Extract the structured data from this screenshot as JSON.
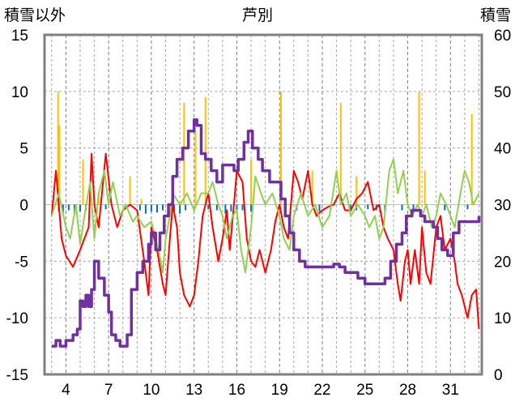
{
  "chart_data": {
    "type": "line",
    "title": "芦別",
    "left_axis_label": "積雪以外",
    "right_axis_label": "積雪",
    "left_ylim": [
      -15,
      15
    ],
    "right_ylim": [
      0,
      60
    ],
    "left_ticks": [
      "15",
      "10",
      "5",
      "0",
      "-5",
      "-10",
      "-15"
    ],
    "right_ticks": [
      "60",
      "50",
      "40",
      "30",
      "20",
      "10",
      "0"
    ],
    "x_tick_labels": [
      "4",
      "7",
      "10",
      "13",
      "16",
      "19",
      "22",
      "25",
      "28",
      "31"
    ],
    "x_tick_days": [
      4,
      7,
      10,
      13,
      16,
      19,
      22,
      25,
      28,
      31
    ],
    "xlim": [
      2.5,
      33.2
    ],
    "series": [
      {
        "axis": "left",
        "color": "#ff0000",
        "style": "line",
        "points": [
          [
            3,
            -1
          ],
          [
            3.3,
            3
          ],
          [
            3.7,
            -3
          ],
          [
            4,
            -4.5
          ],
          [
            4.5,
            -5.5
          ],
          [
            5,
            -4
          ],
          [
            5.6,
            -2
          ],
          [
            5.8,
            4.5
          ],
          [
            6,
            0
          ],
          [
            6.3,
            -2
          ],
          [
            6.8,
            4.5
          ],
          [
            7.2,
            0
          ],
          [
            7.6,
            -2
          ],
          [
            8,
            -0.5
          ],
          [
            8.5,
            0
          ],
          [
            9,
            -0.5
          ],
          [
            9.5,
            -5
          ],
          [
            9.8,
            -8
          ],
          [
            10,
            -2
          ],
          [
            10.4,
            -4
          ],
          [
            10.8,
            -7
          ],
          [
            11,
            -8
          ],
          [
            11.3,
            -3
          ],
          [
            11.5,
            0
          ],
          [
            11.8,
            -2
          ],
          [
            12,
            -6
          ],
          [
            12.3,
            -8
          ],
          [
            12.7,
            -9
          ],
          [
            13,
            -8
          ],
          [
            13.3,
            -5
          ],
          [
            13.6,
            -1
          ],
          [
            14,
            1
          ],
          [
            14.3,
            -2
          ],
          [
            14.7,
            -5
          ],
          [
            15,
            -3
          ],
          [
            15.3,
            -0.5
          ],
          [
            15.5,
            -4
          ],
          [
            15.8,
            0
          ],
          [
            16,
            3
          ],
          [
            16.4,
            2
          ],
          [
            16.7,
            -3
          ],
          [
            17,
            -5
          ],
          [
            17.3,
            -5.5
          ],
          [
            17.6,
            -4
          ],
          [
            18,
            -6
          ],
          [
            18.4,
            -4
          ],
          [
            18.7,
            -1.5
          ],
          [
            19,
            0
          ],
          [
            19.3,
            -2
          ],
          [
            19.6,
            -3
          ],
          [
            20,
            3
          ],
          [
            20.3,
            2
          ],
          [
            20.6,
            0.5
          ],
          [
            21,
            3
          ],
          [
            21.3,
            0
          ],
          [
            21.6,
            -1
          ],
          [
            22,
            -0.5
          ],
          [
            22.4,
            -0.2
          ],
          [
            22.8,
            0
          ],
          [
            23.2,
            1
          ],
          [
            23.6,
            -0.5
          ],
          [
            24,
            -0.5
          ],
          [
            24.4,
            0.5
          ],
          [
            24.8,
            1
          ],
          [
            25.2,
            2
          ],
          [
            25.6,
            -0.5
          ],
          [
            26,
            0
          ],
          [
            26.3,
            -2
          ],
          [
            26.6,
            -3
          ],
          [
            27,
            -4
          ],
          [
            27.3,
            -7
          ],
          [
            27.5,
            -8.5
          ],
          [
            27.8,
            -5
          ],
          [
            28,
            -4
          ],
          [
            28.2,
            -7
          ],
          [
            28.5,
            -4
          ],
          [
            28.8,
            -7
          ],
          [
            29,
            -2
          ],
          [
            29.3,
            -6
          ],
          [
            29.6,
            -7
          ],
          [
            30,
            -2
          ],
          [
            30.3,
            -1
          ],
          [
            30.6,
            -4
          ],
          [
            31,
            -3
          ],
          [
            31.3,
            -5
          ],
          [
            31.5,
            -7
          ],
          [
            31.8,
            -8
          ],
          [
            32.2,
            -10
          ],
          [
            32.5,
            -8
          ],
          [
            32.8,
            -7.5
          ],
          [
            33,
            -11
          ]
        ]
      },
      {
        "axis": "left",
        "color": "#92d050",
        "style": "line",
        "points": [
          [
            3,
            -1
          ],
          [
            3.5,
            1
          ],
          [
            4,
            -2
          ],
          [
            4.3,
            -3
          ],
          [
            4.7,
            0
          ],
          [
            5,
            -3.5
          ],
          [
            5.3,
            -1
          ],
          [
            5.7,
            2
          ],
          [
            6,
            -3
          ],
          [
            6.3,
            1
          ],
          [
            6.7,
            3
          ],
          [
            7,
            0
          ],
          [
            7.3,
            2
          ],
          [
            7.8,
            -1
          ],
          [
            8.2,
            0
          ],
          [
            8.7,
            -1.5
          ],
          [
            9,
            -1
          ],
          [
            9.5,
            -2
          ],
          [
            10,
            -1.5
          ],
          [
            10.5,
            -4
          ],
          [
            10.8,
            -6
          ],
          [
            11,
            -3
          ],
          [
            11.3,
            -1
          ],
          [
            11.5,
            1
          ],
          [
            12,
            0
          ],
          [
            12.5,
            1
          ],
          [
            13,
            -0.5
          ],
          [
            13.5,
            1
          ],
          [
            14,
            1
          ],
          [
            14.3,
            2
          ],
          [
            14.7,
            0
          ],
          [
            15,
            -1
          ],
          [
            15.3,
            -3
          ],
          [
            15.7,
            -1
          ],
          [
            16,
            -0.5
          ],
          [
            16.3,
            -4
          ],
          [
            16.6,
            -6
          ],
          [
            17,
            -2
          ],
          [
            17.3,
            2.5
          ],
          [
            17.7,
            1
          ],
          [
            18,
            0
          ],
          [
            18.5,
            1
          ],
          [
            19,
            -1
          ],
          [
            19.3,
            -3
          ],
          [
            19.7,
            -4
          ],
          [
            20,
            -1
          ],
          [
            20.5,
            1
          ],
          [
            21,
            -1
          ],
          [
            21.5,
            0
          ],
          [
            22,
            -2
          ],
          [
            22.5,
            -1
          ],
          [
            23,
            3
          ],
          [
            23.3,
            0
          ],
          [
            23.7,
            1
          ],
          [
            24,
            -1
          ],
          [
            24.5,
            0
          ],
          [
            25,
            -1
          ],
          [
            25.3,
            -2
          ],
          [
            25.7,
            -1
          ],
          [
            26,
            -3
          ],
          [
            26.3,
            -2
          ],
          [
            26.7,
            3
          ],
          [
            27,
            4
          ],
          [
            27.3,
            1
          ],
          [
            27.7,
            3
          ],
          [
            28,
            0
          ],
          [
            28.3,
            -1
          ],
          [
            28.7,
            0
          ],
          [
            29,
            -1
          ],
          [
            29.3,
            0
          ],
          [
            29.7,
            -2
          ],
          [
            30,
            -1
          ],
          [
            30.3,
            1
          ],
          [
            30.7,
            0
          ],
          [
            31,
            -1
          ],
          [
            31.3,
            -2
          ],
          [
            31.7,
            1
          ],
          [
            32,
            3
          ],
          [
            32.3,
            2
          ],
          [
            32.6,
            0
          ],
          [
            33,
            1
          ]
        ]
      },
      {
        "axis": "right",
        "color": "#7030a0",
        "style": "step",
        "points": [
          [
            3,
            5
          ],
          [
            3.3,
            6
          ],
          [
            3.6,
            5
          ],
          [
            4,
            6
          ],
          [
            4.5,
            7
          ],
          [
            4.8,
            8
          ],
          [
            5,
            13
          ],
          [
            5.2,
            12
          ],
          [
            5.4,
            14
          ],
          [
            5.6,
            12
          ],
          [
            5.8,
            15
          ],
          [
            6,
            20
          ],
          [
            6.3,
            17
          ],
          [
            6.7,
            14
          ],
          [
            7,
            11
          ],
          [
            7.2,
            7
          ],
          [
            7.5,
            6
          ],
          [
            7.8,
            5
          ],
          [
            8,
            5
          ],
          [
            8.3,
            7
          ],
          [
            8.6,
            15
          ],
          [
            9,
            18
          ],
          [
            9.4,
            20
          ],
          [
            9.8,
            23
          ],
          [
            10,
            25
          ],
          [
            10.3,
            22
          ],
          [
            10.6,
            25
          ],
          [
            10.9,
            28
          ],
          [
            11.2,
            30
          ],
          [
            11.5,
            35
          ],
          [
            11.8,
            38
          ],
          [
            12.2,
            40
          ],
          [
            12.6,
            43
          ],
          [
            13,
            45
          ],
          [
            13.2,
            44
          ],
          [
            13.5,
            39
          ],
          [
            13.8,
            38
          ],
          [
            14.2,
            36
          ],
          [
            14.6,
            34
          ],
          [
            15,
            37
          ],
          [
            15.4,
            37
          ],
          [
            15.8,
            36
          ],
          [
            16.1,
            38
          ],
          [
            16.5,
            41
          ],
          [
            16.8,
            43
          ],
          [
            17.1,
            40
          ],
          [
            17.5,
            38
          ],
          [
            17.8,
            36
          ],
          [
            18.3,
            34
          ],
          [
            18.8,
            34
          ],
          [
            19.1,
            31
          ],
          [
            19.4,
            28
          ],
          [
            19.7,
            25
          ],
          [
            20,
            22
          ],
          [
            20.4,
            20
          ],
          [
            20.8,
            19
          ],
          [
            21.2,
            19
          ],
          [
            21.6,
            19
          ],
          [
            22,
            19
          ],
          [
            22.4,
            19
          ],
          [
            22.8,
            19.5
          ],
          [
            23.2,
            19
          ],
          [
            23.6,
            18
          ],
          [
            24,
            18
          ],
          [
            24.5,
            17
          ],
          [
            25,
            16
          ],
          [
            25.5,
            16
          ],
          [
            26,
            16
          ],
          [
            26.4,
            17
          ],
          [
            26.8,
            20
          ],
          [
            27.2,
            23
          ],
          [
            27.6,
            25
          ],
          [
            27.9,
            28
          ],
          [
            28.3,
            29
          ],
          [
            28.6,
            29
          ],
          [
            28.9,
            28
          ],
          [
            29.2,
            27
          ],
          [
            29.5,
            27
          ],
          [
            29.8,
            26
          ],
          [
            30.1,
            24
          ],
          [
            30.4,
            22
          ],
          [
            30.8,
            21
          ],
          [
            31.2,
            25
          ],
          [
            31.6,
            27
          ],
          [
            32,
            27
          ],
          [
            32.5,
            27
          ],
          [
            33,
            28
          ]
        ]
      },
      {
        "axis": "right",
        "color": "#ffc000",
        "style": "bar",
        "width_days": 0.08,
        "points": [
          [
            3.45,
            50
          ],
          [
            3.55,
            44
          ],
          [
            5.2,
            38
          ],
          [
            6.3,
            32
          ],
          [
            8.5,
            35
          ],
          [
            9.3,
            31
          ],
          [
            12.3,
            48
          ],
          [
            13.1,
            43
          ],
          [
            13.8,
            49
          ],
          [
            17,
            38
          ],
          [
            19.1,
            50
          ],
          [
            21.3,
            36
          ],
          [
            23.3,
            48
          ],
          [
            24.4,
            35
          ],
          [
            28.8,
            50
          ],
          [
            29.2,
            36
          ],
          [
            32.5,
            46
          ]
        ]
      },
      {
        "axis": "left",
        "color": "#0070c0",
        "style": "bar",
        "width_days": 0.05,
        "points": [
          [
            3.5,
            -0.6
          ],
          [
            3.8,
            -0.7
          ],
          [
            4.2,
            -0.5
          ],
          [
            4.6,
            -0.8
          ],
          [
            5.0,
            -0.6
          ],
          [
            5.4,
            -0.5
          ],
          [
            6.8,
            -0.4
          ],
          [
            9.2,
            -0.5
          ],
          [
            9.6,
            -0.8
          ],
          [
            10.0,
            -0.6
          ],
          [
            10.4,
            -0.7
          ],
          [
            10.8,
            -0.5
          ],
          [
            11.6,
            -0.6
          ],
          [
            12.0,
            -0.8
          ],
          [
            12.4,
            -0.5
          ],
          [
            14.0,
            -0.4
          ],
          [
            14.6,
            -0.5
          ],
          [
            15.2,
            -0.8
          ],
          [
            15.6,
            -0.6
          ],
          [
            16.0,
            -0.7
          ],
          [
            16.4,
            -0.5
          ],
          [
            17.0,
            -0.6
          ],
          [
            20.2,
            -0.5
          ],
          [
            21.8,
            -0.6
          ],
          [
            22.6,
            -0.4
          ],
          [
            24.0,
            -0.6
          ],
          [
            24.4,
            -0.5
          ],
          [
            25.2,
            -0.4
          ],
          [
            25.8,
            -0.5
          ],
          [
            26.4,
            -0.6
          ],
          [
            27.6,
            -0.5
          ],
          [
            28.4,
            -0.6
          ],
          [
            30.6,
            -0.5
          ],
          [
            32.2,
            -0.4
          ]
        ]
      }
    ]
  }
}
